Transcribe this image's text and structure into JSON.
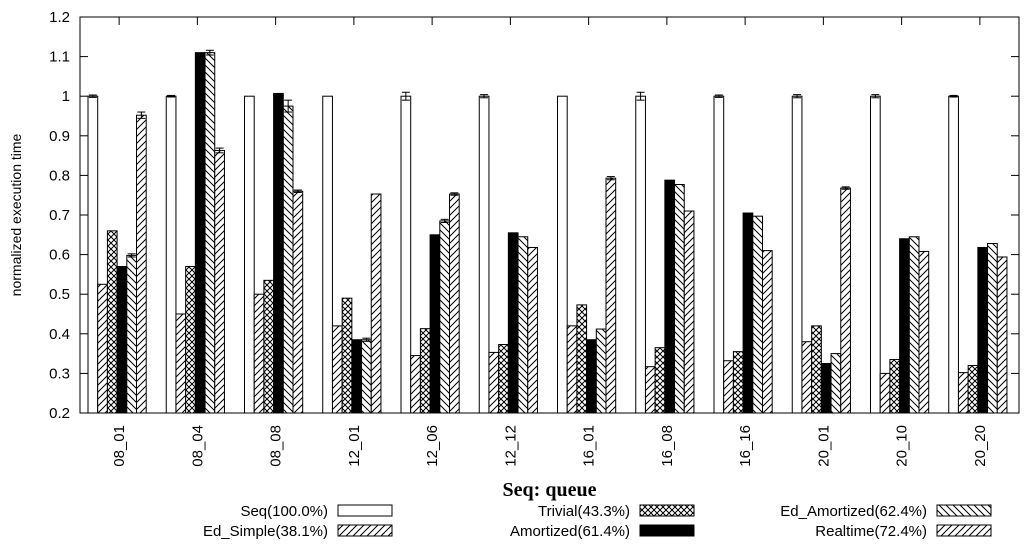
{
  "chart_data": {
    "type": "bar",
    "xlabel": "Seq: queue",
    "ylabel": "normalized execution time",
    "ylim": [
      0.2,
      1.2
    ],
    "yticks": [
      "0.2",
      "0.3",
      "0.4",
      "0.5",
      "0.6",
      "0.7",
      "0.8",
      "0.9",
      "1",
      "1.1",
      "1.2"
    ],
    "categories": [
      "08_01",
      "08_04",
      "08_08",
      "12_01",
      "12_06",
      "12_12",
      "16_01",
      "16_08",
      "16_16",
      "20_01",
      "20_10",
      "20_20"
    ],
    "legend_position": "bottom",
    "series": [
      {
        "name": "Seq(100.0%)",
        "pattern": "empty",
        "values": [
          1.0,
          1.0,
          1.0,
          1.0,
          1.0,
          1.0,
          1.0,
          1.0,
          1.0,
          1.0,
          1.0,
          1.0
        ],
        "errors": [
          0.003,
          0.002,
          0.0,
          0.0,
          0.01,
          0.004,
          0.0,
          0.01,
          0.003,
          0.004,
          0.004,
          0.002
        ]
      },
      {
        "name": "Ed_Simple(38.1%)",
        "pattern": "diagonal-left",
        "values": [
          0.525,
          0.45,
          0.5,
          0.42,
          0.345,
          0.353,
          0.42,
          0.317,
          0.332,
          0.38,
          0.3,
          0.302
        ],
        "errors": [
          0,
          0,
          0,
          0,
          0,
          0,
          0,
          0,
          0,
          0,
          0,
          0
        ]
      },
      {
        "name": "Trivial(43.3%)",
        "pattern": "crosshatch",
        "values": [
          0.66,
          0.57,
          0.535,
          0.49,
          0.413,
          0.373,
          0.473,
          0.365,
          0.355,
          0.42,
          0.335,
          0.32
        ],
        "errors": [
          0,
          0,
          0,
          0,
          0,
          0,
          0,
          0,
          0,
          0,
          0,
          0
        ]
      },
      {
        "name": "Amortized(61.4%)",
        "pattern": "solid",
        "values": [
          0.57,
          1.11,
          1.007,
          0.385,
          0.65,
          0.655,
          0.385,
          0.788,
          0.705,
          0.325,
          0.64,
          0.618
        ],
        "errors": [
          0,
          0,
          0,
          0,
          0,
          0,
          0,
          0,
          0,
          0,
          0,
          0
        ]
      },
      {
        "name": "Ed_Amortized(62.4%)",
        "pattern": "diagonal-right",
        "values": [
          0.598,
          1.11,
          0.975,
          0.385,
          0.685,
          0.645,
          0.412,
          0.777,
          0.697,
          0.35,
          0.645,
          0.628
        ],
        "errors": [
          0.004,
          0.006,
          0.015,
          0.004,
          0.004,
          0.0,
          0.0,
          0.0,
          0.0,
          0.0,
          0.0,
          0.0
        ]
      },
      {
        "name": "Realtime(72.4%)",
        "pattern": "diagonal-left",
        "values": [
          0.952,
          0.863,
          0.76,
          0.753,
          0.753,
          0.618,
          0.793,
          0.71,
          0.61,
          0.768,
          0.608,
          0.594
        ],
        "errors": [
          0.008,
          0.006,
          0.003,
          0.0,
          0.003,
          0.0,
          0.004,
          0.0,
          0.0,
          0.003,
          0.0,
          0.0
        ]
      }
    ]
  }
}
